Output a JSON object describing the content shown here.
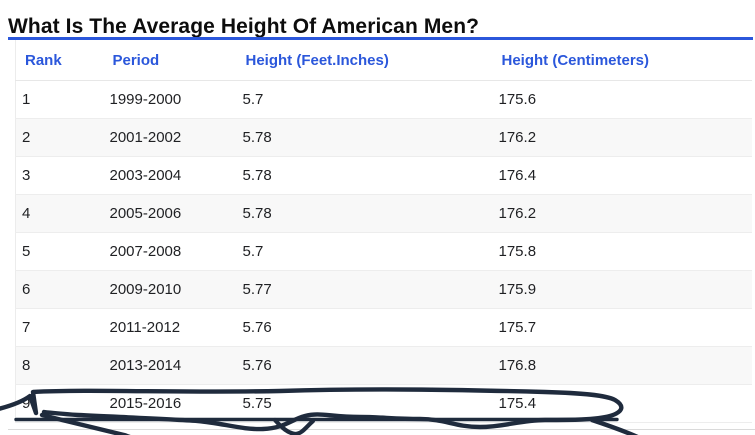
{
  "page": {
    "title": "What Is The Average Height Of American Men?"
  },
  "table": {
    "columns": [
      "Rank",
      "Period",
      "Height (Feet.Inches)",
      "Height (Centimeters)"
    ],
    "rows": [
      [
        "1",
        "1999-2000",
        "5.7",
        "175.6"
      ],
      [
        "2",
        "2001-2002",
        "5.78",
        "176.2"
      ],
      [
        "3",
        "2003-2004",
        "5.78",
        "176.4"
      ],
      [
        "4",
        "2005-2006",
        "5.78",
        "176.2"
      ],
      [
        "5",
        "2007-2008",
        "5.7",
        "175.8"
      ],
      [
        "6",
        "2009-2010",
        "5.77",
        "175.9"
      ],
      [
        "7",
        "2011-2012",
        "5.76",
        "175.7"
      ],
      [
        "8",
        "2013-2014",
        "5.76",
        "176.8"
      ],
      [
        "9",
        "2015-2016",
        "5.75",
        "175.4"
      ]
    ]
  },
  "annotation": {
    "type": "hand-drawn ink circle",
    "color": "#1f2b3d",
    "note": "Row 9 (2015-2016, 5.75 ft, 175.4 cm) is circled with a freehand dark ink loop and underline"
  },
  "colors": {
    "accent_blue": "#2b57db",
    "row_stripe": "#f8f8f8",
    "row_divider": "#ededed",
    "ink": "#1f2b3d",
    "title_text": "#0d0d0d",
    "body_text": "#1f2023"
  },
  "chart_data": {
    "type": "table",
    "title": "What Is The Average Height Of American Men?",
    "columns": [
      "Rank",
      "Period",
      "Height (Feet.Inches)",
      "Height (Centimeters)"
    ],
    "rows": [
      [
        "1",
        "1999-2000",
        "5.7",
        "175.6"
      ],
      [
        "2",
        "2001-2002",
        "5.78",
        "176.2"
      ],
      [
        "3",
        "2003-2004",
        "5.78",
        "176.4"
      ],
      [
        "4",
        "2005-2006",
        "5.78",
        "176.2"
      ],
      [
        "5",
        "2007-2008",
        "5.7",
        "175.8"
      ],
      [
        "6",
        "2009-2010",
        "5.77",
        "175.9"
      ],
      [
        "7",
        "2011-2012",
        "5.76",
        "175.7"
      ],
      [
        "8",
        "2013-2014",
        "5.76",
        "176.8"
      ],
      [
        "9",
        "2015-2016",
        "5.75",
        "175.4"
      ]
    ],
    "annotations": [
      "Hand-drawn circle highlighting row 9: 2015-2016, 5.75 feet, 175.4 cm"
    ]
  }
}
